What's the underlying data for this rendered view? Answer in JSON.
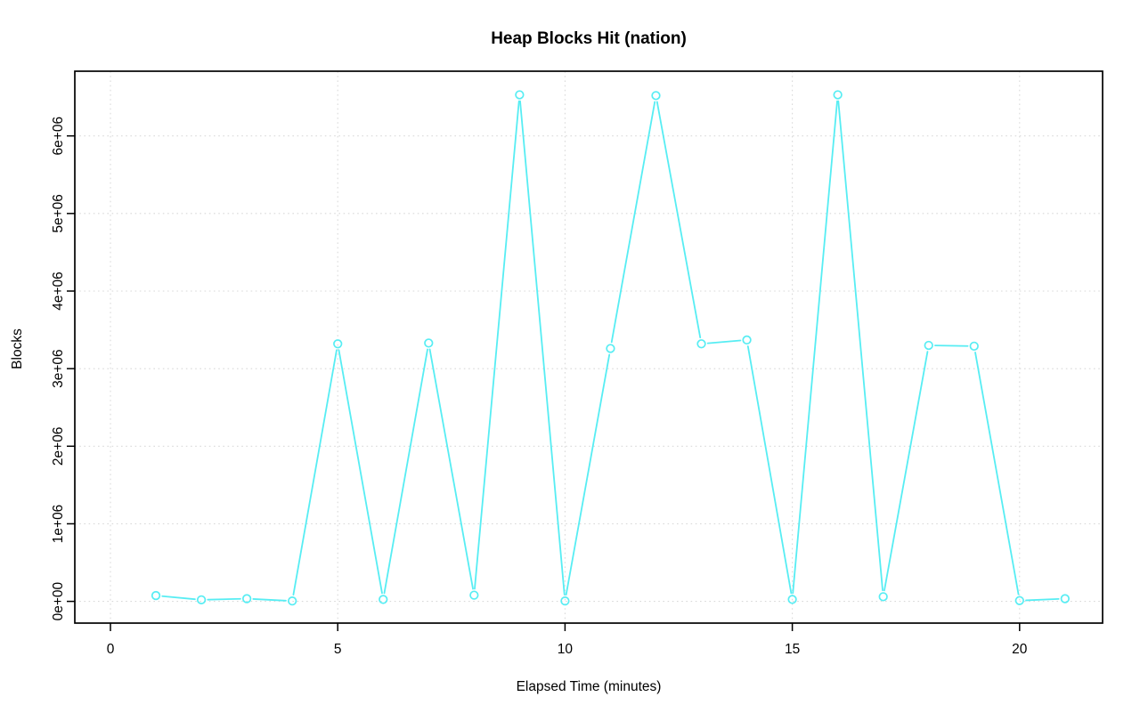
{
  "chart_data": {
    "type": "line",
    "title": "Heap Blocks Hit (nation)",
    "xlabel": "Elapsed Time (minutes)",
    "ylabel": "Blocks",
    "x": [
      1,
      2,
      3,
      4,
      5,
      6,
      7,
      8,
      9,
      10,
      11,
      12,
      13,
      14,
      15,
      16,
      17,
      18,
      19,
      20,
      21
    ],
    "values": [
      75000,
      20000,
      35000,
      5000,
      3320000,
      25000,
      3330000,
      80000,
      6530000,
      5000,
      3260000,
      6520000,
      3320000,
      3370000,
      25000,
      6530000,
      60000,
      3300000,
      3290000,
      10000,
      35000
    ],
    "x_ticks": {
      "values": [
        0,
        5,
        10,
        15,
        20
      ],
      "labels": [
        "0",
        "5",
        "10",
        "15",
        "20"
      ]
    },
    "y_ticks": {
      "values": [
        0,
        1000000,
        2000000,
        3000000,
        4000000,
        5000000,
        6000000
      ],
      "labels": [
        "0e+00",
        "1e+06",
        "2e+06",
        "3e+06",
        "4e+06",
        "5e+06",
        "6e+06"
      ]
    },
    "xlim": [
      -0.784,
      21.826
    ],
    "ylim": [
      -280000,
      6834000
    ],
    "grid": true,
    "legend": "none",
    "marker": "open-circle",
    "line_style": "points-with-segments",
    "colors": {
      "line": "#57EDF3",
      "marker": "#57EDF3",
      "grid": "#D9D9D9",
      "axis": "#000000",
      "text": "#000000",
      "background": "#FFFFFF"
    }
  }
}
